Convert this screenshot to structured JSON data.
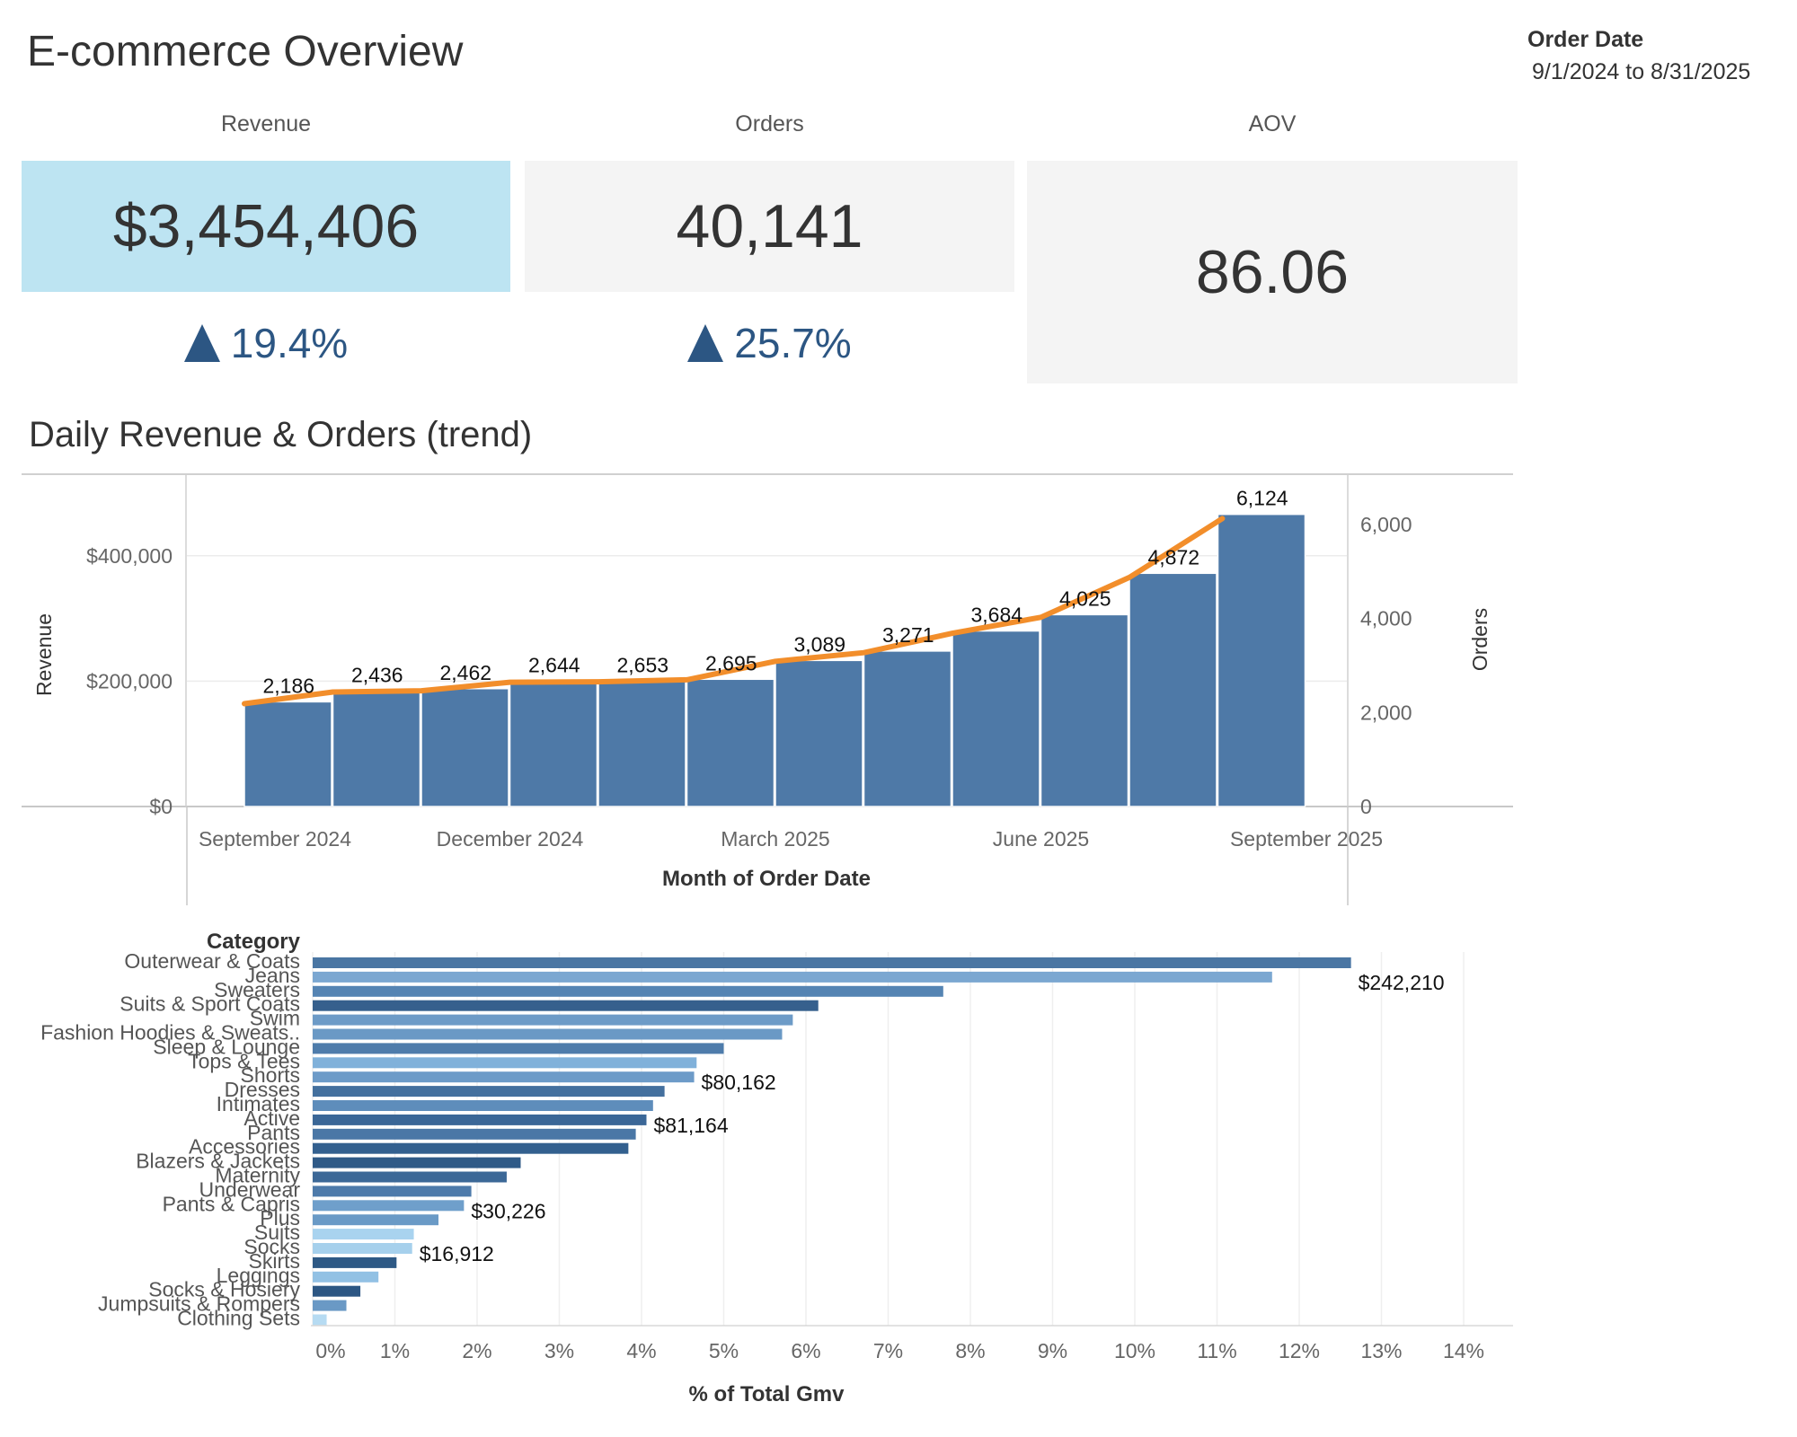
{
  "header": {
    "title": "E-commerce Overview",
    "filter_label": "Order Date",
    "filter_value": "9/1/2024 to 8/31/2025"
  },
  "kpis": [
    {
      "label": "Revenue",
      "value": "$3,454,406",
      "delta": "19.4%",
      "selected": true
    },
    {
      "label": "Orders",
      "value": "40,141",
      "delta": "25.7%",
      "selected": false
    },
    {
      "label": "AOV",
      "value": "86.06",
      "delta": "",
      "selected": false
    }
  ],
  "colors": {
    "bar": "#4e79a7",
    "line": "#f28e2b",
    "delta": "#2c5683",
    "kpi_selected": "#bde4f2",
    "kpi_bg": "#f4f4f4"
  },
  "chart_data": [
    {
      "type": "bar",
      "title": "Daily Revenue & Orders (trend)",
      "xlabel": "Month of Order Date",
      "ylabel": "Revenue",
      "y2label": "Orders",
      "x_tick_labels": [
        "September 2024",
        "December 2024",
        "March 2025",
        "June 2025",
        "September 2025"
      ],
      "y_tick_labels": [
        "$0",
        "$200,000",
        "$400,000"
      ],
      "y2_tick_labels": [
        "0",
        "2,000",
        "4,000",
        "6,000"
      ],
      "ylim": [
        0,
        530000
      ],
      "y2lim": [
        0,
        7067
      ],
      "categories": [
        "Sep 2024",
        "Oct 2024",
        "Nov 2024",
        "Dec 2024",
        "Jan 2025",
        "Feb 2025",
        "Mar 2025",
        "Apr 2025",
        "May 2025",
        "Jun 2025",
        "Jul 2025",
        "Aug 2025"
      ],
      "series": [
        {
          "axis": "left",
          "kind": "bar",
          "values": [
            167000,
            184000,
            188000,
            200000,
            200000,
            203000,
            233000,
            248000,
            280000,
            306000,
            372000,
            466000
          ]
        },
        {
          "axis": "right",
          "kind": "line",
          "values": [
            2186,
            2436,
            2462,
            2644,
            2653,
            2695,
            3089,
            3271,
            3684,
            4025,
            4872,
            6124
          ],
          "labels": [
            "2,186",
            "2,436",
            "2,462",
            "2,644",
            "2,653",
            "2,695",
            "3,089",
            "3,271",
            "3,684",
            "4,025",
            "4,872",
            "6,124"
          ]
        }
      ],
      "grid": true
    },
    {
      "type": "bar",
      "orientation": "horizontal",
      "title": "",
      "category_header": "Category",
      "xlabel": "% of Total Gmv",
      "xlim": [
        0,
        14.5
      ],
      "x_tick_labels": [
        "0%",
        "1%",
        "2%",
        "3%",
        "4%",
        "5%",
        "6%",
        "7%",
        "8%",
        "9%",
        "10%",
        "11%",
        "12%",
        "13%",
        "14%"
      ],
      "categories": [
        "Outerwear & Coats",
        "Jeans",
        "Sweaters",
        "Suits & Sport Coats",
        "Swim",
        "Fashion Hoodies & Sweats..",
        "Sleep & Lounge",
        "Tops & Tees",
        "Shorts",
        "Dresses",
        "Intimates",
        "Active",
        "Pants",
        "Accessories",
        "Blazers & Jackets",
        "Maternity",
        "Underwear",
        "Pants & Capris",
        "Plus",
        "Suits",
        "Socks",
        "Skirts",
        "Leggings",
        "Socks & Hosiery",
        "Jumpsuits & Rompers",
        "Clothing Sets"
      ],
      "values": [
        12.63,
        11.67,
        7.67,
        6.15,
        5.84,
        5.71,
        5.0,
        4.67,
        4.64,
        4.28,
        4.14,
        4.06,
        3.93,
        3.84,
        2.53,
        2.36,
        1.93,
        1.84,
        1.53,
        1.23,
        1.21,
        1.02,
        0.8,
        0.58,
        0.41,
        0.17
      ],
      "value_labels": [
        {
          "category": "Jeans",
          "label": "$242,210"
        },
        {
          "category": "Shorts",
          "label": "$80,162"
        },
        {
          "category": "Active",
          "label": "$81,164"
        },
        {
          "category": "Pants & Capris",
          "label": "$30,226"
        },
        {
          "category": "Socks",
          "label": "$16,912"
        }
      ],
      "bar_colors": [
        "#4a76a3",
        "#7ba7d1",
        "#5584b3",
        "#36608d",
        "#6d9bc7",
        "#6a99c5",
        "#4e7cab",
        "#80b1da",
        "#6d9bc8",
        "#44709e",
        "#5e8dbb",
        "#3b6797",
        "#4a77a6",
        "#33608f",
        "#2f5a87",
        "#3c6897",
        "#4d7aaa",
        "#6f9fcb",
        "#6a9ac6",
        "#a9d3ef",
        "#a6d0ec",
        "#2e5985",
        "#92c1e4",
        "#2c5683",
        "#6a99c5",
        "#b6dbf2"
      ],
      "grid": true
    }
  ]
}
